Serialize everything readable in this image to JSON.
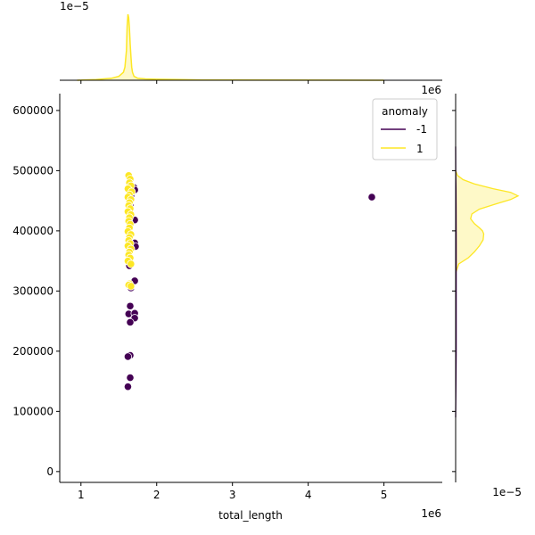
{
  "chart_data": {
    "type": "scatter",
    "title": "",
    "xlabel": "total_length",
    "ylabel": "",
    "x_offset_label": "1e6",
    "y_offset_label": "1e6",
    "top_marginal_offset_label": "1e−5",
    "right_marginal_offset_label": "1e−5",
    "xlim": [
      0.72,
      5.77
    ],
    "ylim": [
      -18000,
      628000
    ],
    "x_ticks": [
      1,
      2,
      3,
      4,
      5
    ],
    "x_tick_labels": [
      "1",
      "2",
      "3",
      "4",
      "5"
    ],
    "y_ticks": [
      0,
      100000,
      200000,
      300000,
      400000,
      500000,
      600000
    ],
    "y_tick_labels": [
      "0",
      "100000",
      "200000",
      "300000",
      "400000",
      "500000",
      "600000"
    ],
    "grid": false,
    "legend": {
      "title": "anomaly",
      "placement": "top-right",
      "entries": [
        {
          "label": "-1",
          "color": "#440154"
        },
        {
          "label": "1",
          "color": "#fde725"
        }
      ]
    },
    "series": [
      {
        "name": "-1",
        "color": "#440154",
        "points": [
          [
            1.7,
            472000
          ],
          [
            1.71,
            468000
          ],
          [
            1.66,
            458000
          ],
          [
            4.84,
            456000
          ],
          [
            1.65,
            442000
          ],
          [
            1.71,
            418000
          ],
          [
            1.71,
            380000
          ],
          [
            1.72,
            374000
          ],
          [
            1.64,
            342000
          ],
          [
            1.71,
            317000
          ],
          [
            1.66,
            305000
          ],
          [
            1.65,
            275000
          ],
          [
            1.63,
            262000
          ],
          [
            1.71,
            263000
          ],
          [
            1.71,
            255000
          ],
          [
            1.65,
            248000
          ],
          [
            1.65,
            193000
          ],
          [
            1.62,
            191000
          ],
          [
            1.65,
            156000
          ],
          [
            1.62,
            141000
          ]
        ]
      },
      {
        "name": "1",
        "color": "#fde725",
        "points": [
          [
            1.63,
            492000
          ],
          [
            1.65,
            486000
          ],
          [
            1.64,
            480000
          ],
          [
            1.66,
            475000
          ],
          [
            1.62,
            470000
          ],
          [
            1.67,
            465000
          ],
          [
            1.64,
            460000
          ],
          [
            1.62,
            456000
          ],
          [
            1.66,
            452000
          ],
          [
            1.64,
            447000
          ],
          [
            1.63,
            442000
          ],
          [
            1.65,
            437000
          ],
          [
            1.62,
            432000
          ],
          [
            1.66,
            427000
          ],
          [
            1.64,
            422000
          ],
          [
            1.63,
            416000
          ],
          [
            1.65,
            411000
          ],
          [
            1.64,
            405000
          ],
          [
            1.62,
            399000
          ],
          [
            1.66,
            394000
          ],
          [
            1.64,
            389000
          ],
          [
            1.63,
            384000
          ],
          [
            1.65,
            379000
          ],
          [
            1.62,
            375000
          ],
          [
            1.66,
            370000
          ],
          [
            1.64,
            365000
          ],
          [
            1.63,
            360000
          ],
          [
            1.65,
            355000
          ],
          [
            1.62,
            350000
          ],
          [
            1.66,
            345000
          ],
          [
            1.64,
            312000
          ],
          [
            1.63,
            310000
          ],
          [
            1.66,
            308000
          ]
        ]
      }
    ],
    "marginal_x_density": {
      "color": "#fde725",
      "x": [
        0.95,
        1.2,
        1.4,
        1.5,
        1.56,
        1.58,
        1.6,
        1.61,
        1.62,
        1.63,
        1.64,
        1.65,
        1.66,
        1.67,
        1.68,
        1.7,
        1.75,
        1.85,
        2.0,
        2.3,
        2.6,
        5.0
      ],
      "y": [
        0,
        0.01,
        0.03,
        0.06,
        0.12,
        0.2,
        0.45,
        0.82,
        1.0,
        0.95,
        0.78,
        0.55,
        0.35,
        0.2,
        0.12,
        0.06,
        0.03,
        0.02,
        0.015,
        0.01,
        0.004,
        0
      ]
    },
    "marginal_y_density": [
      {
        "name": "1",
        "color": "#fde725",
        "y": [
          330000,
          345000,
          355000,
          365000,
          375000,
          385000,
          395000,
          400000,
          405000,
          412000,
          420000,
          428000,
          436000,
          444000,
          452000,
          458000,
          464000,
          470000,
          478000,
          485000,
          492000,
          500000
        ],
        "density": [
          0,
          0.05,
          0.2,
          0.3,
          0.38,
          0.44,
          0.45,
          0.43,
          0.38,
          0.3,
          0.24,
          0.26,
          0.38,
          0.62,
          0.88,
          1.0,
          0.88,
          0.6,
          0.3,
          0.12,
          0.03,
          0
        ]
      },
      {
        "name": "-1",
        "color": "#440154",
        "y": [
          90000,
          140000,
          200000,
          260000,
          320000,
          380000,
          440000,
          470000,
          500000,
          540000
        ],
        "density": [
          0,
          0.004,
          0.008,
          0.009,
          0.009,
          0.009,
          0.007,
          0.005,
          0.002,
          0
        ]
      }
    ]
  }
}
